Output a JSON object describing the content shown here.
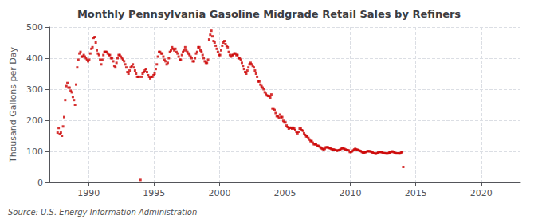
{
  "chart_data": {
    "type": "scatter",
    "title": "Monthly Pennsylvania Gasoline Midgrade Retail Sales by Refiners",
    "ylabel": "Thousand Gallons per Day",
    "annotation": "Source: U.S. Energy Information Administration",
    "color": "#cc0000",
    "marker": "square",
    "grid": true,
    "xlim": [
      1987.0,
      2023.0
    ],
    "ylim": [
      0,
      500
    ],
    "xticks": [
      1990,
      1995,
      2000,
      2005,
      2010,
      2015,
      2020
    ],
    "yticks": [
      0,
      100,
      200,
      300,
      400,
      500
    ],
    "x": [
      1987.625,
      1987.7083333333333,
      1987.7916666666667,
      1987.875,
      1987.9583333333333,
      1988.0416666666667,
      1988.125,
      1988.2083333333333,
      1988.2916666666667,
      1988.375,
      1988.4583333333333,
      1988.5416666666667,
      1988.625,
      1988.7083333333333,
      1988.7916666666667,
      1988.875,
      1988.9583333333333,
      1989.0416666666667,
      1989.125,
      1989.2083333333333,
      1989.2916666666667,
      1989.375,
      1989.4583333333333,
      1989.5416666666667,
      1989.625,
      1989.7083333333333,
      1989.7916666666667,
      1989.875,
      1989.9583333333333,
      1990.0416666666667,
      1990.125,
      1990.2083333333333,
      1990.2916666666667,
      1990.375,
      1990.4583333333333,
      1990.5416666666667,
      1990.625,
      1990.7083333333333,
      1990.7916666666667,
      1990.875,
      1990.9583333333333,
      1991.0416666666667,
      1991.125,
      1991.2083333333333,
      1991.2916666666667,
      1991.375,
      1991.4583333333333,
      1991.5416666666667,
      1991.625,
      1991.7083333333333,
      1991.7916666666667,
      1991.875,
      1991.9583333333333,
      1992.0416666666667,
      1992.125,
      1992.2083333333333,
      1992.2916666666667,
      1992.375,
      1992.4583333333333,
      1992.5416666666667,
      1992.625,
      1992.7083333333333,
      1992.7916666666667,
      1992.875,
      1992.9583333333333,
      1993.0416666666667,
      1993.125,
      1993.2083333333333,
      1993.2916666666667,
      1993.375,
      1993.4583333333333,
      1993.5416666666667,
      1993.625,
      1993.7083333333333,
      1993.7916666666667,
      1993.875,
      1993.9583333333333,
      1994.0416666666667,
      1994.125,
      1994.2083333333333,
      1994.2916666666667,
      1994.375,
      1994.4583333333333,
      1994.5416666666667,
      1994.625,
      1994.7083333333333,
      1994.7916666666667,
      1994.875,
      1994.9583333333333,
      1995.0416666666667,
      1995.125,
      1995.2083333333333,
      1995.2916666666667,
      1995.375,
      1995.4583333333333,
      1995.5416666666667,
      1995.625,
      1995.7083333333333,
      1995.7916666666667,
      1995.875,
      1995.9583333333333,
      1996.0416666666667,
      1996.125,
      1996.2083333333333,
      1996.2916666666667,
      1996.375,
      1996.4583333333333,
      1996.5416666666667,
      1996.625,
      1996.7083333333333,
      1996.7916666666667,
      1996.875,
      1996.9583333333333,
      1997.0416666666667,
      1997.125,
      1997.2083333333333,
      1997.2916666666667,
      1997.375,
      1997.4583333333333,
      1997.5416666666667,
      1997.625,
      1997.7083333333333,
      1997.7916666666667,
      1997.875,
      1997.9583333333333,
      1998.0416666666667,
      1998.125,
      1998.2083333333333,
      1998.2916666666667,
      1998.375,
      1998.4583333333333,
      1998.5416666666667,
      1998.625,
      1998.7083333333333,
      1998.7916666666667,
      1998.875,
      1998.9583333333333,
      1999.0416666666667,
      1999.125,
      1999.2083333333333,
      1999.2916666666667,
      1999.375,
      1999.4583333333333,
      1999.5416666666667,
      1999.625,
      1999.7083333333333,
      1999.7916666666667,
      1999.875,
      1999.9583333333333,
      2000.0416666666667,
      2000.125,
      2000.2083333333333,
      2000.2916666666667,
      2000.375,
      2000.4583333333333,
      2000.5416666666667,
      2000.625,
      2000.7083333333333,
      2000.7916666666667,
      2000.875,
      2000.9583333333333,
      2001.0416666666667,
      2001.125,
      2001.2083333333333,
      2001.2916666666667,
      2001.375,
      2001.4583333333333,
      2001.5416666666667,
      2001.625,
      2001.7083333333333,
      2001.7916666666667,
      2001.875,
      2001.9583333333333,
      2002.0416666666667,
      2002.125,
      2002.2083333333333,
      2002.2916666666667,
      2002.375,
      2002.4583333333333,
      2002.5416666666667,
      2002.625,
      2002.7083333333333,
      2002.7916666666667,
      2002.875,
      2002.9583333333333,
      2003.0416666666667,
      2003.125,
      2003.2083333333333,
      2003.2916666666667,
      2003.375,
      2003.4583333333333,
      2003.5416666666667,
      2003.625,
      2003.7083333333333,
      2003.7916666666667,
      2003.875,
      2003.9583333333333,
      2004.0416666666667,
      2004.125,
      2004.2083333333333,
      2004.2916666666667,
      2004.375,
      2004.4583333333333,
      2004.5416666666667,
      2004.625,
      2004.7083333333333,
      2004.7916666666667,
      2004.875,
      2004.9583333333333,
      2005.0416666666667,
      2005.125,
      2005.2083333333333,
      2005.2916666666667,
      2005.375,
      2005.4583333333333,
      2005.5416666666667,
      2005.625,
      2005.7083333333333,
      2005.7916666666667,
      2005.875,
      2005.9583333333333,
      2006.0416666666667,
      2006.125,
      2006.2083333333333,
      2006.2916666666667,
      2006.375,
      2006.4583333333333,
      2006.5416666666667,
      2006.625,
      2006.7083333333333,
      2006.7916666666667,
      2006.875,
      2006.9583333333333,
      2007.0416666666667,
      2007.125,
      2007.2083333333333,
      2007.2916666666667,
      2007.375,
      2007.4583333333333,
      2007.5416666666667,
      2007.625,
      2007.7083333333333,
      2007.7916666666667,
      2007.875,
      2007.9583333333333,
      2008.0416666666667,
      2008.125,
      2008.2083333333333,
      2008.2916666666667,
      2008.375,
      2008.4583333333333,
      2008.5416666666667,
      2008.625,
      2008.7083333333333,
      2008.7916666666667,
      2008.875,
      2008.9583333333333,
      2009.0416666666667,
      2009.125,
      2009.2083333333333,
      2009.2916666666667,
      2009.375,
      2009.4583333333333,
      2009.5416666666667,
      2009.625,
      2009.7083333333333,
      2009.7916666666667,
      2009.875,
      2009.9583333333333,
      2010.0416666666667,
      2010.125,
      2010.2083333333333,
      2010.2916666666667,
      2010.375,
      2010.4583333333333,
      2010.5416666666667,
      2010.625,
      2010.7083333333333,
      2010.7916666666667,
      2010.875,
      2010.9583333333333,
      2011.0416666666667,
      2011.125,
      2011.2083333333333,
      2011.2916666666667,
      2011.375,
      2011.4583333333333,
      2011.5416666666667,
      2011.625,
      2011.7083333333333,
      2011.7916666666667,
      2011.875,
      2011.9583333333333,
      2012.0416666666667,
      2012.125,
      2012.2083333333333,
      2012.2916666666667,
      2012.375,
      2012.4583333333333,
      2012.5416666666667,
      2012.625,
      2012.7083333333333,
      2012.7916666666667,
      2012.875,
      2012.9583333333333,
      2013.0416666666667,
      2013.125,
      2013.2083333333333,
      2013.2916666666667,
      2013.375,
      2013.4583333333333,
      2013.5416666666667,
      2013.625,
      2013.7083333333333,
      2013.7916666666667,
      2013.875,
      2013.9583333333333,
      2014.0416666666667
    ],
    "values": [
      160,
      175,
      155,
      160,
      150,
      180,
      210,
      265,
      310,
      320,
      305,
      305,
      295,
      290,
      275,
      265,
      250,
      315,
      370,
      395,
      415,
      420,
      405,
      405,
      410,
      405,
      400,
      395,
      390,
      395,
      415,
      430,
      435,
      465,
      468,
      450,
      425,
      415,
      410,
      395,
      380,
      395,
      410,
      420,
      420,
      420,
      415,
      410,
      410,
      400,
      400,
      390,
      375,
      370,
      385,
      400,
      410,
      410,
      405,
      400,
      395,
      390,
      380,
      370,
      355,
      350,
      360,
      370,
      375,
      380,
      370,
      360,
      350,
      340,
      340,
      340,
      8,
      340,
      350,
      355,
      360,
      365,
      355,
      345,
      340,
      335,
      340,
      340,
      345,
      350,
      365,
      380,
      405,
      420,
      420,
      415,
      415,
      405,
      395,
      390,
      380,
      385,
      400,
      420,
      425,
      435,
      430,
      425,
      430,
      420,
      415,
      405,
      395,
      395,
      410,
      420,
      425,
      435,
      425,
      420,
      415,
      410,
      405,
      400,
      390,
      390,
      400,
      415,
      420,
      435,
      435,
      425,
      420,
      410,
      400,
      390,
      385,
      385,
      395,
      460,
      475,
      488,
      470,
      455,
      450,
      440,
      430,
      420,
      410,
      410,
      425,
      440,
      450,
      455,
      445,
      440,
      435,
      420,
      410,
      405,
      410,
      410,
      415,
      415,
      410,
      410,
      400,
      400,
      395,
      385,
      375,
      365,
      355,
      350,
      360,
      370,
      380,
      385,
      380,
      375,
      370,
      360,
      350,
      340,
      325,
      325,
      315,
      310,
      305,
      300,
      290,
      285,
      280,
      278,
      278,
      273,
      283,
      238,
      238,
      233,
      223,
      213,
      213,
      208,
      218,
      210,
      210,
      198,
      193,
      193,
      183,
      178,
      173,
      176,
      176,
      173,
      176,
      173,
      168,
      163,
      158,
      163,
      173,
      173,
      168,
      166,
      158,
      153,
      148,
      148,
      143,
      138,
      133,
      133,
      128,
      123,
      123,
      123,
      118,
      118,
      116,
      113,
      110,
      108,
      106,
      108,
      113,
      113,
      113,
      111,
      110,
      108,
      106,
      106,
      105,
      104,
      102,
      103,
      104,
      105,
      108,
      110,
      110,
      108,
      106,
      104,
      104,
      103,
      98,
      98,
      100,
      103,
      106,
      108,
      106,
      105,
      104,
      102,
      101,
      98,
      96,
      96,
      97,
      98,
      100,
      101,
      100,
      100,
      98,
      96,
      94,
      93,
      92,
      94,
      96,
      98,
      98,
      98,
      96,
      94,
      94,
      93,
      93,
      93,
      96,
      96,
      98,
      100,
      98,
      96,
      94,
      93,
      94,
      93,
      93,
      96,
      98,
      50
    ]
  }
}
